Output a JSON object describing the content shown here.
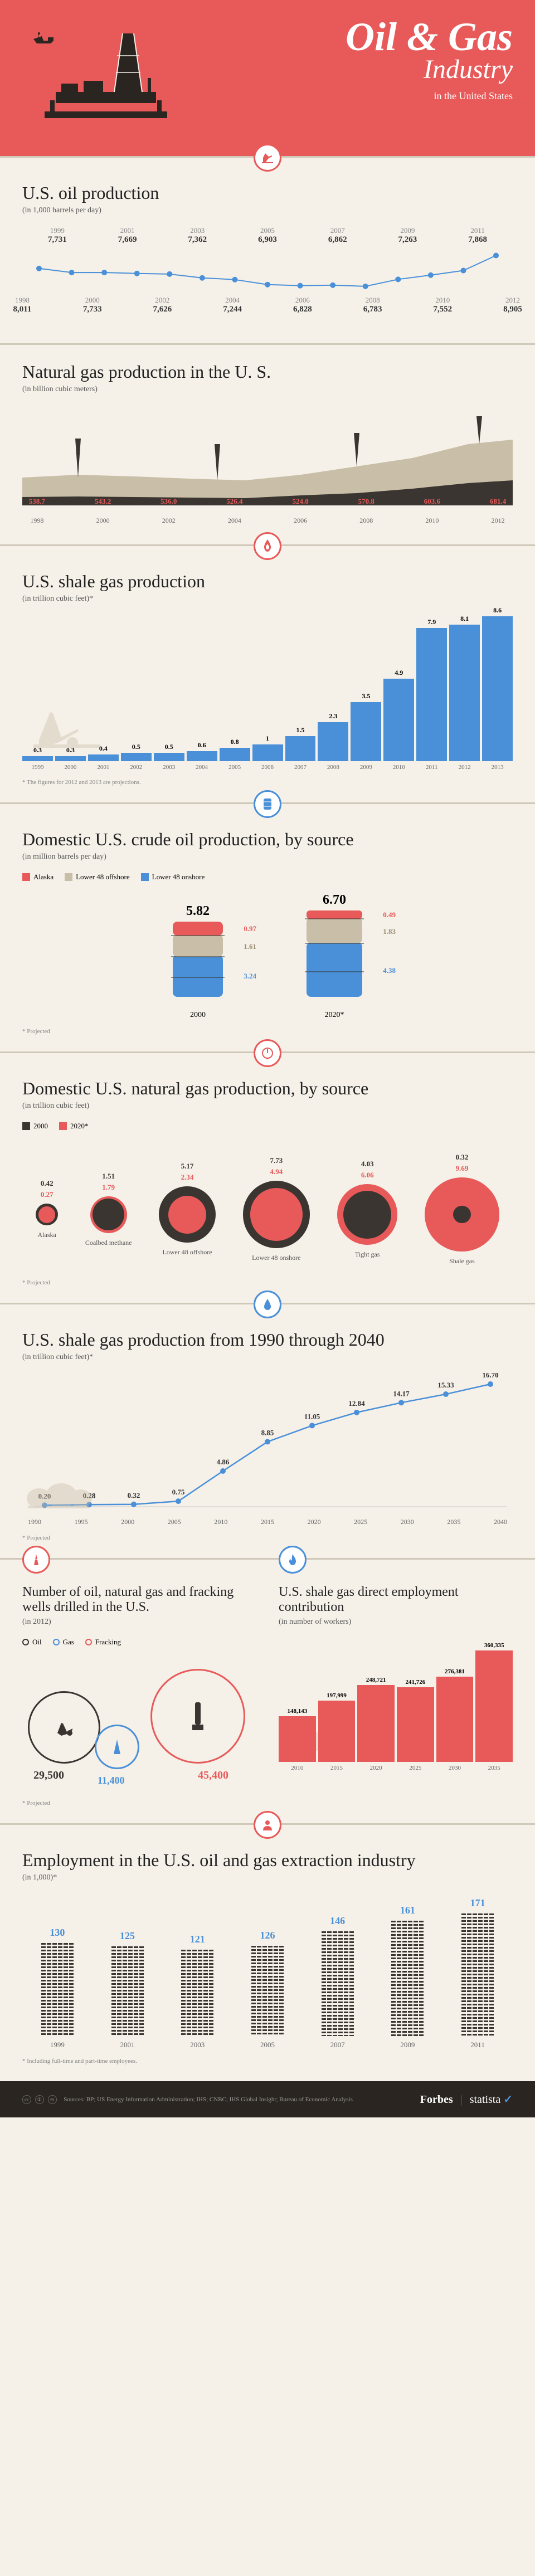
{
  "header": {
    "title_line1": "Oil & Gas",
    "title_line2": "Industry",
    "subtitle": "in the United States"
  },
  "colors": {
    "red": "#e85a5a",
    "blue": "#4a90d9",
    "dark": "#3a3530",
    "tan": "#c9bfa8",
    "cream": "#f5f0e8"
  },
  "oil_production": {
    "title": "U.S. oil production",
    "subtitle": "(in 1,000 barrels per day)",
    "top_years": [
      "1999",
      "2001",
      "2003",
      "2005",
      "2007",
      "2009",
      "2011"
    ],
    "top_values": [
      "7,731",
      "7,669",
      "7,362",
      "6,903",
      "6,862",
      "7,263",
      "7,868"
    ],
    "bottom_years": [
      "1998",
      "2000",
      "2002",
      "2004",
      "2006",
      "2008",
      "2010",
      "2012"
    ],
    "bottom_values": [
      "8,011",
      "7,733",
      "7,626",
      "7,244",
      "6,828",
      "6,783",
      "7,552",
      "8,905"
    ]
  },
  "natural_gas": {
    "title": "Natural gas production in the U. S.",
    "subtitle": "(in billion cubic meters)",
    "years": [
      "1998",
      "2000",
      "2002",
      "2004",
      "2006",
      "2008",
      "2010",
      "2012"
    ],
    "values": [
      "538.7",
      "543.2",
      "536.0",
      "526.4",
      "524.0",
      "570.8",
      "603.6",
      "681.4"
    ]
  },
  "shale_gas": {
    "title": "U.S. shale gas production",
    "subtitle": "(in trillion cubic feet)*",
    "years": [
      "1999",
      "2000",
      "2001",
      "2002",
      "2003",
      "2004",
      "2005",
      "2006",
      "2007",
      "2008",
      "2009",
      "2010",
      "2011",
      "2012",
      "2013"
    ],
    "values": [
      0.3,
      0.3,
      0.4,
      0.5,
      0.5,
      0.6,
      0.8,
      1.0,
      1.5,
      2.3,
      3.5,
      4.9,
      7.9,
      8.1,
      8.6
    ],
    "max": 8.6,
    "footnote": "* The figures for 2012 and 2013 are projections."
  },
  "crude_by_source": {
    "title": "Domestic U.S. crude oil production, by source",
    "subtitle": "(in million barrels per day)",
    "legend": [
      "Alaska",
      "Lower 48 offshore",
      "Lower 48 onshore"
    ],
    "legend_colors": [
      "#e85a5a",
      "#c9bfa8",
      "#4a90d9"
    ],
    "year1": "2000",
    "year2": "2020*",
    "total1": "5.82",
    "total2": "6.70",
    "vals1": [
      "0.97",
      "1.61",
      "3.24"
    ],
    "vals2": [
      "0.49",
      "1.83",
      "4.38"
    ],
    "footnote": "* Projected"
  },
  "natgas_by_source": {
    "title": "Domestic U.S. natural gas production, by source",
    "subtitle": "(in trillion cubic feet)",
    "legend": [
      "2000",
      "2020*"
    ],
    "categories": [
      "Alaska",
      "Coalbed methane",
      "Lower 48 offshore",
      "Lower 48 onshore",
      "Tight gas",
      "Shale gas"
    ],
    "vals_2000": [
      "0.42",
      "1.51",
      "5.17",
      "7.73",
      "4.03",
      "0.32"
    ],
    "vals_2020": [
      "0.27",
      "1.79",
      "2.34",
      "4.94",
      "6.06",
      "9.69"
    ],
    "footnote": "* Projected"
  },
  "shale_1990_2040": {
    "title": "U.S. shale gas production from 1990 through 2040",
    "subtitle": "(in trillion cubic feet)*",
    "years": [
      "1990",
      "1995",
      "2000",
      "2005",
      "2010",
      "2015",
      "2020",
      "2025",
      "2030",
      "2035",
      "2040"
    ],
    "values": [
      0.2,
      0.28,
      0.32,
      0.75,
      4.86,
      8.85,
      11.05,
      12.84,
      14.17,
      15.33,
      16.7
    ],
    "max": 16.7,
    "footnote": "* Projected"
  },
  "wells_drilled": {
    "title": "Number of oil, natural gas and fracking wells drilled in the U.S.",
    "subtitle": "(in 2012)",
    "legend": [
      "Oil",
      "Gas",
      "Fracking"
    ],
    "oil": "29,500",
    "gas": "11,400",
    "fracking": "45,400",
    "footnote": "* Projected"
  },
  "employment_contrib": {
    "title": "U.S. shale gas direct employment contribution",
    "subtitle": "(in number of workers)",
    "years": [
      "2010",
      "2015",
      "2020",
      "2025",
      "2030",
      "2035"
    ],
    "values": [
      148143,
      197999,
      248721,
      241726,
      276381,
      360335
    ],
    "labels": [
      "148,143",
      "197,999",
      "248,721",
      "241,726",
      "276,381",
      "360,335"
    ],
    "max": 360335
  },
  "employment_extraction": {
    "title": "Employment in the U.S. oil and gas extraction industry",
    "subtitle": "(in 1,000)*",
    "years": [
      "1999",
      "2001",
      "2003",
      "2005",
      "2007",
      "2009",
      "2011"
    ],
    "values": [
      130,
      125,
      121,
      126,
      146,
      161,
      171
    ],
    "max": 171,
    "footnote": "* Including full-time and part-time employees."
  },
  "footer": {
    "sources": "Sources: BP; US Energy Information Administration; IHS; CNBC; IHS Global Insight; Bureau of Economic Analysis",
    "brand1": "Forbes",
    "brand2": "statista"
  }
}
